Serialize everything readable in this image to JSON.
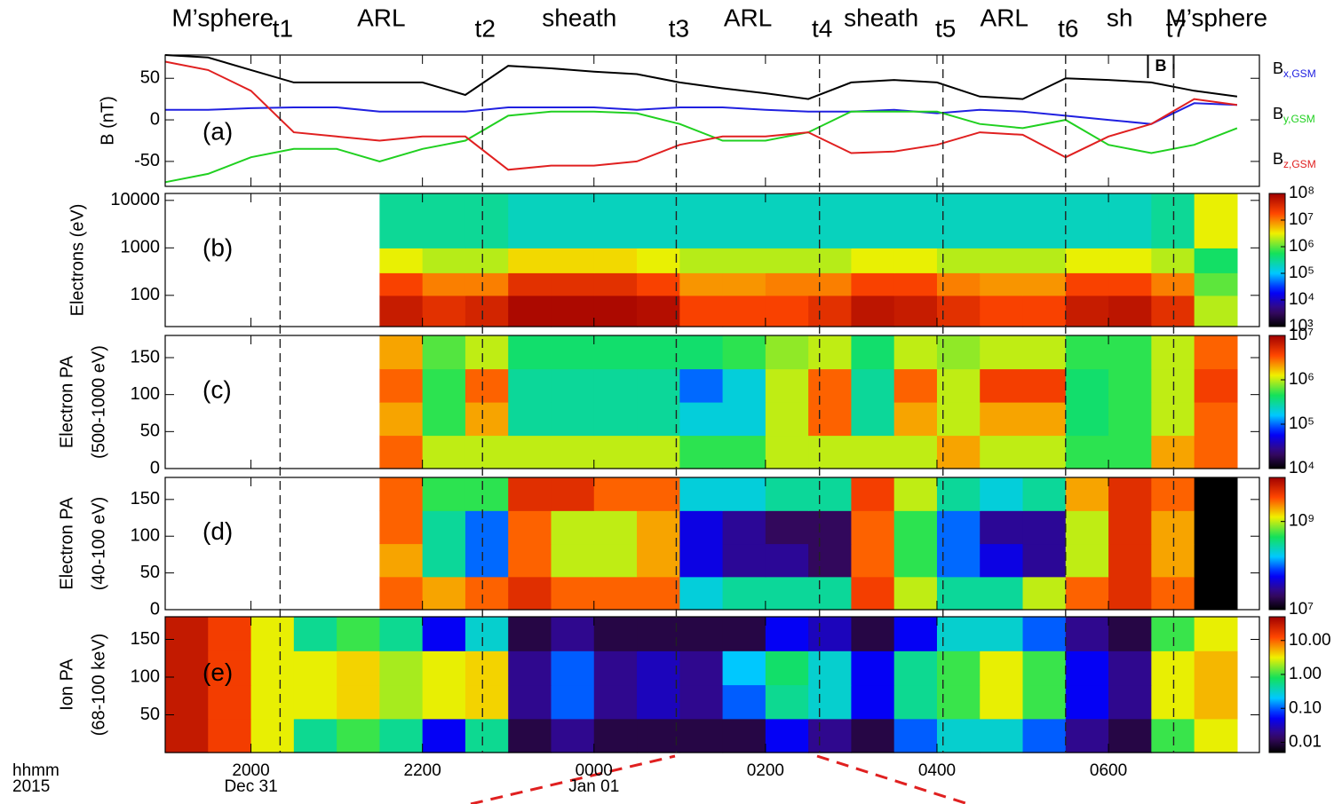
{
  "chart_data": {
    "type": "stacked-panels",
    "xlim": [
      19,
      31.76
    ],
    "xticks": [
      {
        "value": 20,
        "label": "2000"
      },
      {
        "value": 22,
        "label": "2200"
      },
      {
        "value": 24,
        "label": "0000"
      },
      {
        "value": 26,
        "label": "0200"
      },
      {
        "value": 28,
        "label": "0400"
      },
      {
        "value": 30,
        "label": "0600"
      }
    ],
    "date_labels": [
      {
        "value": 20,
        "label": "Dec 31"
      },
      {
        "value": 24,
        "label": "Jan 01"
      }
    ],
    "xlabel": "hhmm",
    "xlabel2": "2015",
    "events": [
      {
        "label": "t1",
        "value": 20.34
      },
      {
        "label": "t2",
        "value": 22.7
      },
      {
        "label": "t3",
        "value": 24.96
      },
      {
        "label": "t4",
        "value": 26.63
      },
      {
        "label": "t5",
        "value": 28.07
      },
      {
        "label": "t6",
        "value": 29.5
      },
      {
        "label": "t7",
        "value": 30.76
      }
    ],
    "regions": [
      "M’sphere",
      "ARL",
      "sheath",
      "ARL",
      "sheath",
      "ARL",
      "sh",
      "M’sphere"
    ],
    "panels": [
      {
        "type": "line",
        "label": "(a)",
        "ylabel": "B (nT)",
        "ylim": [
          -80,
          78
        ],
        "yticks": [
          50,
          0,
          -50
        ],
        "x": [
          19,
          19.5,
          20,
          20.5,
          21,
          21.5,
          22,
          22.5,
          23,
          23.5,
          24,
          24.5,
          25,
          25.5,
          26,
          26.5,
          27,
          27.5,
          28,
          28.5,
          29,
          29.5,
          30,
          30.5,
          31,
          31.5
        ],
        "magnitude": {
          "color": "#000000",
          "values": [
            78,
            75,
            60,
            45,
            45,
            45,
            45,
            30,
            65,
            62,
            58,
            55,
            45,
            38,
            32,
            25,
            45,
            48,
            45,
            28,
            25,
            50,
            48,
            45,
            35,
            28
          ]
        },
        "series": [
          {
            "name": "B",
            "subscript": "x,GSM",
            "color": "#2020e0",
            "values": [
              12,
              12,
              14,
              15,
              15,
              10,
              10,
              10,
              15,
              15,
              15,
              12,
              15,
              15,
              12,
              10,
              10,
              12,
              8,
              12,
              10,
              5,
              0,
              -5,
              20,
              18
            ]
          },
          {
            "name": "B",
            "subscript": "y,GSM",
            "color": "#20d020",
            "values": [
              -75,
              -65,
              -45,
              -35,
              -35,
              -50,
              -35,
              -25,
              5,
              10,
              10,
              8,
              -5,
              -25,
              -25,
              -15,
              10,
              10,
              10,
              -5,
              -10,
              0,
              -30,
              -40,
              -30,
              -10
            ]
          },
          {
            "name": "B",
            "subscript": "z,GSM",
            "color": "#e02020",
            "values": [
              70,
              60,
              35,
              -15,
              -20,
              -25,
              -20,
              -20,
              -60,
              -55,
              -55,
              -50,
              -30,
              -20,
              -20,
              -15,
              -40,
              -38,
              -30,
              -15,
              -18,
              -45,
              -20,
              -5,
              25,
              18
            ]
          }
        ],
        "annotation": {
          "label": "B",
          "x": [
            30.46,
            30.76
          ]
        }
      },
      {
        "type": "heatmap",
        "label": "(b)",
        "ylabel": "Electrons (eV)",
        "log_y": true,
        "ylim": [
          22,
          14000
        ],
        "yticks": [
          10000,
          1000,
          100
        ],
        "clim": [
          1000,
          100000000.0
        ],
        "cticks": [
          {
            "value": 100000000.0,
            "label": "10⁸"
          },
          {
            "value": 10000000.0,
            "label": "10⁷"
          },
          {
            "value": 1000000.0,
            "label": "10⁶"
          },
          {
            "value": 100000.0,
            "label": "10⁵"
          },
          {
            "value": 10000.0,
            "label": "10⁴"
          },
          {
            "value": 1000,
            "label": "10³"
          }
        ],
        "x_bins": [
          21.5,
          22,
          22.5,
          23,
          23.5,
          24,
          24.5,
          25,
          25.5,
          26,
          26.5,
          27,
          27.5,
          28,
          28.5,
          29,
          29.5,
          30,
          30.5,
          31,
          31.5
        ],
        "y_bins": [
          22,
          100,
          300,
          1000,
          14000
        ],
        "values": [
          [
            50000000.0,
            30000000.0,
            40000000.0,
            80000000.0,
            80000000.0,
            80000000.0,
            70000000.0,
            20000000.0,
            20000000.0,
            20000000.0,
            30000000.0,
            60000000.0,
            50000000.0,
            30000000.0,
            20000000.0,
            20000000.0,
            50000000.0,
            60000000.0,
            30000000.0,
            2000000.0
          ],
          [
            20000000.0,
            10000000.0,
            10000000.0,
            30000000.0,
            30000000.0,
            30000000.0,
            20000000.0,
            8000000.0,
            8000000.0,
            10000000.0,
            10000000.0,
            20000000.0,
            20000000.0,
            10000000.0,
            8000000.0,
            8000000.0,
            20000000.0,
            20000000.0,
            10000000.0,
            1000000.0
          ],
          [
            3000000.0,
            2000000.0,
            2000000.0,
            4000000.0,
            4000000.0,
            4000000.0,
            3000000.0,
            2000000.0,
            2000000.0,
            2000000.0,
            2000000.0,
            3000000.0,
            3000000.0,
            2000000.0,
            2000000.0,
            2000000.0,
            3000000.0,
            3000000.0,
            2000000.0,
            500000.0
          ],
          [
            300000.0,
            300000.0,
            300000.0,
            200000.0,
            200000.0,
            200000.0,
            200000.0,
            200000.0,
            200000.0,
            200000.0,
            200000.0,
            200000.0,
            200000.0,
            200000.0,
            200000.0,
            200000.0,
            200000.0,
            200000.0,
            300000.0,
            3000000.0
          ]
        ]
      },
      {
        "type": "heatmap",
        "label": "(c)",
        "ylabel": "Electron PA",
        "ylabel2": "(500-1000 eV)",
        "ylim": [
          0,
          180
        ],
        "yticks": [
          150,
          100,
          50,
          0
        ],
        "clim": [
          10000.0,
          10000000.0
        ],
        "cticks": [
          {
            "value": 10000000.0,
            "label": "10⁷"
          },
          {
            "value": 1000000.0,
            "label": "10⁶"
          },
          {
            "value": 100000.0,
            "label": "10⁵"
          },
          {
            "value": 10000.0,
            "label": "10⁴"
          }
        ],
        "x_bins": [
          21.5,
          22,
          22.5,
          23,
          23.5,
          24,
          24.5,
          25,
          25.5,
          26,
          26.5,
          27,
          27.5,
          28,
          28.5,
          29,
          29.5,
          30,
          30.5,
          31,
          31.5
        ],
        "y_bins": [
          0,
          45,
          90,
          135,
          180
        ],
        "values": [
          [
            3000000.0,
            1000000.0,
            1000000.0,
            1000000.0,
            1000000.0,
            1000000.0,
            1000000.0,
            500000.0,
            500000.0,
            1000000.0,
            1000000.0,
            1000000.0,
            1000000.0,
            2000000.0,
            1000000.0,
            1000000.0,
            500000.0,
            500000.0,
            2000000.0,
            3000000.0
          ],
          [
            2000000.0,
            500000.0,
            2000000.0,
            300000.0,
            300000.0,
            300000.0,
            300000.0,
            200000.0,
            200000.0,
            1000000.0,
            3000000.0,
            300000.0,
            2000000.0,
            1000000.0,
            2000000.0,
            2000000.0,
            400000.0,
            500000.0,
            1000000.0,
            3000000.0
          ],
          [
            3000000.0,
            500000.0,
            3000000.0,
            300000.0,
            300000.0,
            300000.0,
            300000.0,
            100000.0,
            200000.0,
            1000000.0,
            3000000.0,
            300000.0,
            3000000.0,
            1000000.0,
            4000000.0,
            4000000.0,
            400000.0,
            500000.0,
            1000000.0,
            4000000.0
          ],
          [
            2000000.0,
            600000.0,
            1000000.0,
            400000.0,
            400000.0,
            400000.0,
            400000.0,
            400000.0,
            500000.0,
            800000.0,
            1000000.0,
            400000.0,
            1000000.0,
            800000.0,
            1000000.0,
            1000000.0,
            500000.0,
            500000.0,
            1000000.0,
            3000000.0
          ]
        ]
      },
      {
        "type": "heatmap",
        "label": "(d)",
        "ylabel": "Electron PA",
        "ylabel2": "(40-100 eV)",
        "ylim": [
          0,
          180
        ],
        "yticks": [
          150,
          100,
          50,
          0
        ],
        "clim": [
          10000000.0,
          10000000000.0
        ],
        "cticks": [
          {
            "value": 1000000000.0,
            "label": "10⁹"
          },
          {
            "value": 10000000.0,
            "label": "10⁷"
          }
        ],
        "x_bins": [
          21.5,
          22,
          22.5,
          23,
          23.5,
          24,
          24.5,
          25,
          25.5,
          26,
          26.5,
          27,
          27.5,
          28,
          28.5,
          29,
          29.5,
          30,
          30.5,
          31,
          31.5
        ],
        "y_bins": [
          0,
          45,
          90,
          135,
          180
        ],
        "values": [
          [
            3000000000.0,
            2000000000.0,
            3000000000.0,
            5000000000.0,
            3000000000.0,
            3000000000.0,
            3000000000.0,
            200000000.0,
            300000000.0,
            300000000.0,
            300000000.0,
            4000000000.0,
            1000000000.0,
            300000000.0,
            300000000.0,
            1000000000.0,
            3000000000.0,
            5000000000.0,
            3000000000.0,
            5000000.0
          ],
          [
            2000000000.0,
            300000000.0,
            100000000.0,
            3000000000.0,
            1000000000.0,
            1000000000.0,
            2000000000.0,
            50000000.0,
            30000000.0,
            30000000.0,
            20000000.0,
            3000000000.0,
            500000000.0,
            100000000.0,
            50000000.0,
            30000000.0,
            1000000000.0,
            5000000000.0,
            2000000000.0,
            5000000.0
          ],
          [
            3000000000.0,
            300000000.0,
            100000000.0,
            3000000000.0,
            1000000000.0,
            1000000000.0,
            2000000000.0,
            50000000.0,
            30000000.0,
            20000000.0,
            20000000.0,
            3000000000.0,
            500000000.0,
            100000000.0,
            30000000.0,
            30000000.0,
            1000000000.0,
            5000000000.0,
            2000000000.0,
            5000000.0
          ],
          [
            3000000000.0,
            500000000.0,
            500000000.0,
            5000000000.0,
            5000000000.0,
            3000000000.0,
            3000000000.0,
            200000000.0,
            200000000.0,
            300000000.0,
            300000000.0,
            4000000000.0,
            1000000000.0,
            300000000.0,
            200000000.0,
            300000000.0,
            2000000000.0,
            5000000000.0,
            3000000000.0,
            5000000.0
          ]
        ]
      },
      {
        "type": "heatmap",
        "label": "(e)",
        "ylabel": "Ion PA",
        "ylabel2": "(68-100 keV)",
        "ylim": [
          0,
          180
        ],
        "yticks": [
          150,
          100,
          50
        ],
        "clim": [
          0.005,
          50
        ],
        "cticks": [
          {
            "value": 10,
            "label": "10.00"
          },
          {
            "value": 1,
            "label": "1.00"
          },
          {
            "value": 0.1,
            "label": "0.10"
          },
          {
            "value": 0.01,
            "label": "0.01"
          }
        ],
        "x_bins": [
          19,
          19.5,
          20,
          20.5,
          21,
          21.5,
          22,
          22.5,
          23,
          23.5,
          24,
          24.5,
          25,
          25.5,
          26,
          26.5,
          27,
          27.5,
          28,
          28.5,
          29,
          29.5,
          30,
          30.5,
          31,
          31.5
        ],
        "y_bins": [
          0,
          45,
          90,
          135,
          180
        ],
        "values": [
          [
            30,
            15,
            3,
            0.5,
            1,
            0.5,
            0.05,
            0.5,
            0.01,
            0.02,
            0.01,
            0.01,
            0.01,
            0.01,
            0.05,
            0.02,
            0.01,
            0.1,
            0.3,
            0.3,
            0.1,
            0.02,
            0.01,
            1,
            3
          ],
          [
            30,
            15,
            3,
            3,
            4,
            2,
            3,
            4,
            0.02,
            0.1,
            0.02,
            0.03,
            0.02,
            0.1,
            0.5,
            0.3,
            0.05,
            0.5,
            1,
            3,
            1,
            0.05,
            0.02,
            3,
            5
          ],
          [
            30,
            15,
            3,
            3,
            4,
            2,
            3,
            4,
            0.02,
            0.1,
            0.02,
            0.03,
            0.02,
            0.2,
            0.7,
            0.3,
            0.05,
            0.5,
            1,
            3,
            1,
            0.05,
            0.02,
            3,
            5
          ],
          [
            30,
            15,
            3,
            0.5,
            1,
            0.5,
            0.05,
            0.3,
            0.01,
            0.02,
            0.01,
            0.01,
            0.01,
            0.01,
            0.05,
            0.03,
            0.01,
            0.05,
            0.3,
            0.3,
            0.1,
            0.02,
            0.01,
            1,
            3
          ]
        ]
      }
    ]
  }
}
